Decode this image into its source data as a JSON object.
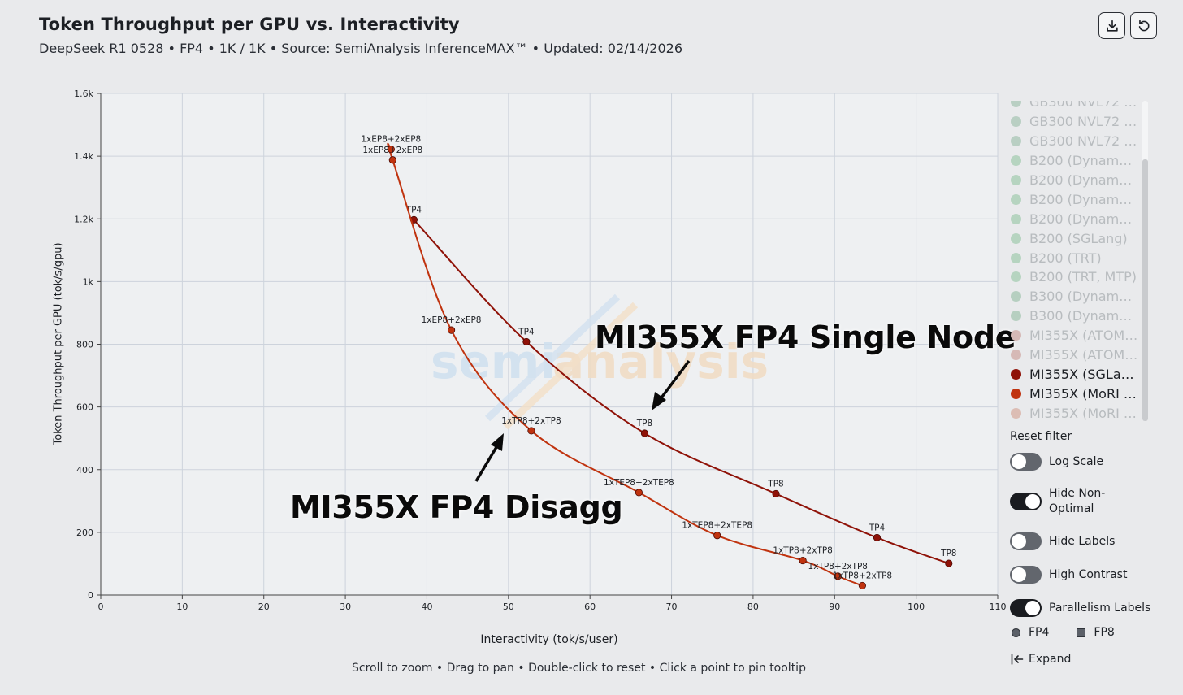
{
  "header": {
    "title": "Token Throughput per GPU vs. Interactivity",
    "subtitle": "DeepSeek R1 0528 • FP4 • 1K / 1K • Source: SemiAnalysis InferenceMAX™ • Updated: 02/14/2026"
  },
  "toolbar": {
    "download_icon": "download-icon",
    "reset_icon": "refresh-icon"
  },
  "watermark": {
    "left": "semi",
    "right": "analysis"
  },
  "legend": {
    "items": [
      {
        "label": "GB300 NVL72 (...",
        "color": "#b9cfc3",
        "active": false
      },
      {
        "label": "GB300 NVL72 (...",
        "color": "#b9cfc3",
        "active": false
      },
      {
        "label": "GB300 NVL72 (...",
        "color": "#b9cfc3",
        "active": false
      },
      {
        "label": "B200 (Dynamo ...",
        "color": "#b6d4c0",
        "active": false
      },
      {
        "label": "B200 (Dynamo ...",
        "color": "#b6d4c0",
        "active": false
      },
      {
        "label": "B200 (Dynamo ...",
        "color": "#b6d4c0",
        "active": false
      },
      {
        "label": "B200 (Dynamo ...",
        "color": "#b6d4c0",
        "active": false
      },
      {
        "label": "B200 (SGLang)",
        "color": "#b6d4c0",
        "active": false
      },
      {
        "label": "B200 (TRT)",
        "color": "#b6d4c0",
        "active": false
      },
      {
        "label": "B200 (TRT, MTP)",
        "color": "#b6d4c0",
        "active": false
      },
      {
        "label": "B300 (Dynamo ...",
        "color": "#b6cfc0",
        "active": false
      },
      {
        "label": "B300 (Dynamo ...",
        "color": "#b6cfc0",
        "active": false
      },
      {
        "label": "MI355X (ATOM, ...",
        "color": "#d6b9b6",
        "active": false
      },
      {
        "label": "MI355X (ATOM, ...",
        "color": "#d6b9b6",
        "active": false
      },
      {
        "label": "MI355X (SGLang)",
        "color": "#8f1208",
        "active": true
      },
      {
        "label": "MI355X (MoRI S...",
        "color": "#c0330f",
        "active": true
      },
      {
        "label": "MI355X (MoRI S...",
        "color": "#dcbdb4",
        "active": false
      }
    ],
    "reset_label": "Reset filter"
  },
  "controls": {
    "log_scale": "Log Scale",
    "hide_non_optimal_1": "Hide Non-",
    "hide_non_optimal_2": "Optimal",
    "hide_labels": "Hide Labels",
    "high_contrast": "High Contrast",
    "parallelism_labels": "Parallelism Labels",
    "fp4": "FP4",
    "fp8": "FP8",
    "expand": "Expand"
  },
  "hint": "Scroll to zoom • Drag to pan • Double-click to reset • Click a point to pin tooltip",
  "annotations": {
    "single_node": "MI355X FP4 Single Node",
    "disagg": "MI355X FP4 Disagg"
  },
  "chart_data": {
    "type": "line",
    "title": "Token Throughput per GPU vs. Interactivity",
    "xlabel": "Interactivity (tok/s/user)",
    "ylabel": "Token Throughput per GPU (tok/s/gpu)",
    "xlim": [
      0,
      110
    ],
    "ylim": [
      0,
      1600
    ],
    "xticks": [
      0,
      10,
      20,
      30,
      40,
      50,
      60,
      70,
      80,
      90,
      100,
      110
    ],
    "yticks": [
      0,
      200,
      400,
      600,
      800,
      1000,
      1200,
      1400,
      1600
    ],
    "ytick_labels": [
      "0",
      "200",
      "400",
      "600",
      "800",
      "1k",
      "1.2k",
      "1.4k",
      "1.6k"
    ],
    "grid": true,
    "series": [
      {
        "name": "MI355X (SGLang)",
        "color": "#8f1208",
        "points": [
          {
            "x": 38.4,
            "y": 1197,
            "label": "TP4"
          },
          {
            "x": 52.2,
            "y": 808,
            "label": "TP4"
          },
          {
            "x": 66.7,
            "y": 516,
            "label": "TP8"
          },
          {
            "x": 82.8,
            "y": 323,
            "label": "TP8"
          },
          {
            "x": 95.2,
            "y": 183,
            "label": "TP4"
          },
          {
            "x": 104.0,
            "y": 101,
            "label": "TP8"
          }
        ]
      },
      {
        "name": "MI355X (MoRI SGLang)",
        "color": "#c0330f",
        "points": [
          {
            "x": 35.6,
            "y": 1422,
            "label": "1xEP8+2xEP8"
          },
          {
            "x": 35.8,
            "y": 1388,
            "label": "1xEP8+2xEP8"
          },
          {
            "x": 43.0,
            "y": 845,
            "label": "1xEP8+2xEP8"
          },
          {
            "x": 52.8,
            "y": 524,
            "label": "1xTP8+2xTP8"
          },
          {
            "x": 66.0,
            "y": 327,
            "label": "1xTEP8+2xTEP8"
          },
          {
            "x": 75.6,
            "y": 190,
            "label": "1xTEP8+2xTEP8"
          },
          {
            "x": 86.1,
            "y": 110,
            "label": "1xTP8+2xTP8"
          },
          {
            "x": 90.4,
            "y": 60,
            "label": "1xTP8+2xTP8"
          },
          {
            "x": 93.4,
            "y": 30,
            "label": "1xTP8+2xTP8"
          }
        ]
      }
    ]
  }
}
